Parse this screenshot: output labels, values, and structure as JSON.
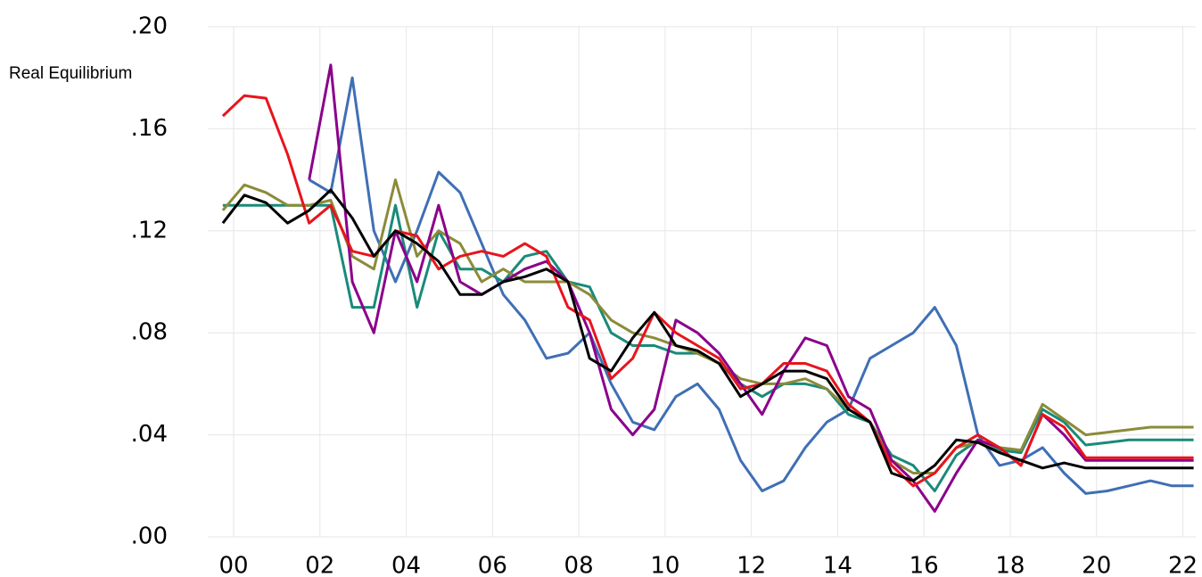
{
  "chart_data": {
    "type": "line",
    "ylabel": "Real Equilibrium",
    "x": [
      -0.25,
      0.25,
      0.75,
      1.25,
      1.75,
      2.25,
      2.75,
      3.25,
      3.75,
      4.25,
      4.75,
      5.25,
      5.75,
      6.25,
      6.75,
      7.25,
      7.75,
      8.25,
      8.75,
      9.25,
      9.75,
      10.25,
      10.75,
      11.25,
      11.75,
      12.25,
      12.75,
      13.25,
      13.75,
      14.25,
      14.75,
      15.25,
      15.75,
      16.25,
      16.75,
      17.25,
      17.75,
      18.25,
      18.75,
      19.25,
      19.75,
      20.25,
      20.75,
      21.25,
      21.75,
      22.25
    ],
    "series": [
      {
        "color": "#3f6fb5",
        "values": [
          null,
          null,
          null,
          null,
          0.14,
          0.135,
          0.18,
          0.12,
          0.1,
          0.12,
          0.143,
          0.135,
          0.115,
          0.095,
          0.085,
          0.07,
          0.072,
          0.08,
          0.06,
          0.045,
          0.042,
          0.055,
          0.06,
          0.05,
          0.03,
          0.018,
          0.022,
          0.035,
          0.045,
          0.05,
          0.07,
          0.075,
          0.08,
          0.09,
          0.075,
          0.04,
          0.028,
          0.03,
          0.035,
          0.025,
          0.017,
          0.018,
          0.02,
          0.022,
          0.02,
          0.02
        ]
      },
      {
        "color": "#1a8a7a",
        "values": [
          0.13,
          0.13,
          0.13,
          0.13,
          0.13,
          0.13,
          0.09,
          0.09,
          0.13,
          0.09,
          0.12,
          0.105,
          0.105,
          0.1,
          0.11,
          0.112,
          0.1,
          0.098,
          0.08,
          0.075,
          0.075,
          0.072,
          0.072,
          0.068,
          0.06,
          0.055,
          0.06,
          0.06,
          0.058,
          0.048,
          0.045,
          0.032,
          0.028,
          0.018,
          0.032,
          0.038,
          0.034,
          0.033,
          0.05,
          0.045,
          0.036,
          0.037,
          0.038,
          0.038,
          0.038,
          0.038
        ]
      },
      {
        "color": "#8b8b3a",
        "values": [
          0.128,
          0.138,
          0.135,
          0.13,
          0.13,
          0.132,
          0.11,
          0.105,
          0.14,
          0.11,
          0.12,
          0.115,
          0.1,
          0.105,
          0.1,
          0.1,
          0.1,
          0.095,
          0.085,
          0.08,
          0.078,
          0.075,
          0.072,
          0.068,
          0.062,
          0.06,
          0.06,
          0.062,
          0.058,
          0.05,
          0.045,
          0.03,
          0.025,
          0.025,
          0.035,
          0.037,
          0.035,
          0.034,
          0.052,
          0.046,
          0.04,
          0.041,
          0.042,
          0.043,
          0.043,
          0.043
        ]
      },
      {
        "color": "#8b008b",
        "values": [
          null,
          null,
          null,
          null,
          0.14,
          0.185,
          0.1,
          0.08,
          0.12,
          0.1,
          0.13,
          0.1,
          0.095,
          0.1,
          0.105,
          0.108,
          0.1,
          0.08,
          0.05,
          0.04,
          0.05,
          0.085,
          0.08,
          0.072,
          0.06,
          0.048,
          0.065,
          0.078,
          0.075,
          0.055,
          0.05,
          0.03,
          0.022,
          0.01,
          0.025,
          0.038,
          0.035,
          0.028,
          0.048,
          0.04,
          0.03,
          0.03,
          0.03,
          0.03,
          0.03,
          0.03
        ]
      },
      {
        "color": "#e8141c",
        "values": [
          0.165,
          0.173,
          0.172,
          0.15,
          0.123,
          0.13,
          0.112,
          0.11,
          0.12,
          0.118,
          0.105,
          0.11,
          0.112,
          0.11,
          0.115,
          0.11,
          0.09,
          0.085,
          0.062,
          0.07,
          0.088,
          0.08,
          0.075,
          0.07,
          0.058,
          0.06,
          0.068,
          0.068,
          0.065,
          0.052,
          0.045,
          0.028,
          0.02,
          0.025,
          0.035,
          0.04,
          0.035,
          0.028,
          0.048,
          0.043,
          0.031,
          0.031,
          0.031,
          0.031,
          0.031,
          0.031
        ]
      },
      {
        "color": "#000000",
        "values": [
          0.123,
          0.134,
          0.131,
          0.123,
          0.128,
          0.136,
          0.125,
          0.11,
          0.12,
          0.115,
          0.108,
          0.095,
          0.095,
          0.1,
          0.102,
          0.105,
          0.1,
          0.07,
          0.065,
          0.078,
          0.088,
          0.075,
          0.073,
          0.068,
          0.055,
          0.06,
          0.065,
          0.065,
          0.062,
          0.05,
          0.045,
          0.025,
          0.022,
          0.028,
          0.038,
          0.037,
          0.033,
          0.03,
          0.027,
          0.029,
          0.027,
          0.027,
          0.027,
          0.027,
          0.027,
          0.027
        ]
      }
    ],
    "xlim": [
      -0.6,
      22.3
    ],
    "xticks": [
      {
        "value": 0,
        "label": "00"
      },
      {
        "value": 2,
        "label": "02"
      },
      {
        "value": 4,
        "label": "04"
      },
      {
        "value": 6,
        "label": "06"
      },
      {
        "value": 8,
        "label": "08"
      },
      {
        "value": 10,
        "label": "10"
      },
      {
        "value": 12,
        "label": "12"
      },
      {
        "value": 14,
        "label": "14"
      },
      {
        "value": 16,
        "label": "16"
      },
      {
        "value": 18,
        "label": "18"
      },
      {
        "value": 20,
        "label": "20"
      },
      {
        "value": 22,
        "label": "22"
      }
    ],
    "ylim": [
      0,
      0.2
    ],
    "yticks": [
      {
        "value": 0,
        "label": ".00"
      },
      {
        "value": 0.04,
        "label": ".04"
      },
      {
        "value": 0.08,
        "label": ".08"
      },
      {
        "value": 0.12,
        "label": ".12"
      },
      {
        "value": 0.16,
        "label": ".16"
      },
      {
        "value": 0.2,
        "label": ".20"
      }
    ],
    "grid": true
  }
}
